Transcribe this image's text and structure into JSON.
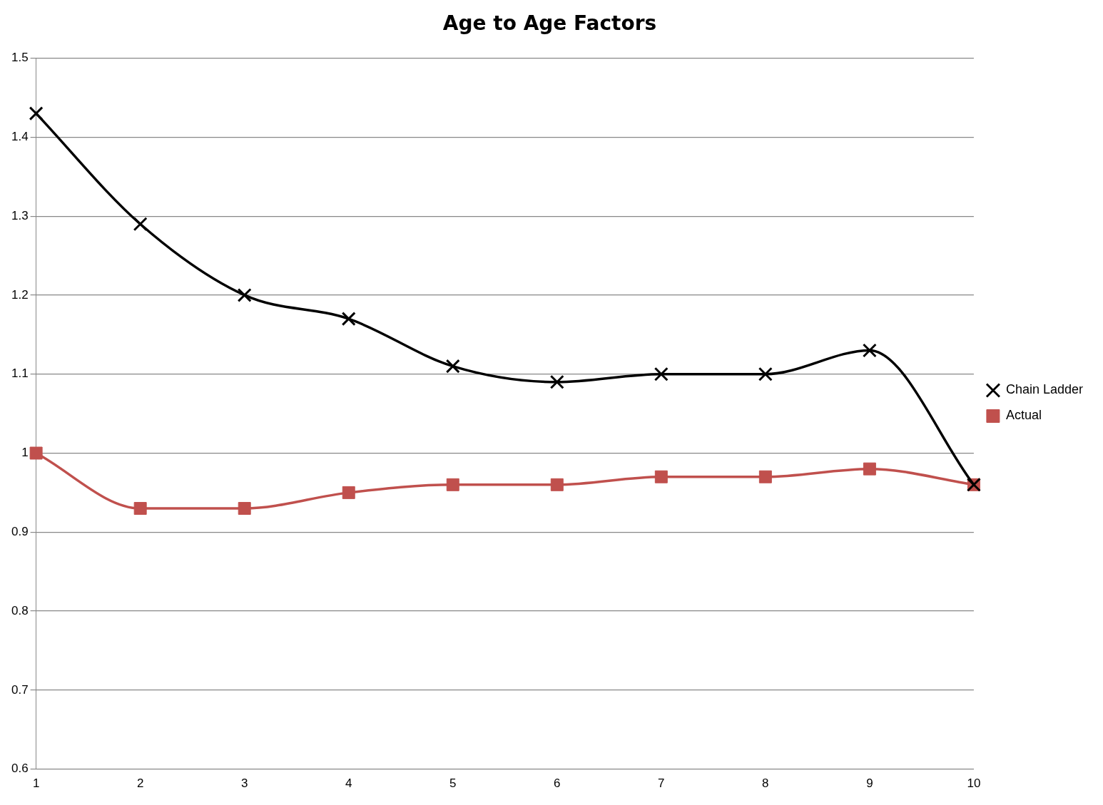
{
  "chart_data": {
    "type": "line",
    "title": "Age to Age Factors",
    "categories": [
      "1",
      "2",
      "3",
      "4",
      "5",
      "6",
      "7",
      "8",
      "9",
      "10"
    ],
    "series": [
      {
        "name": "Chain Ladder",
        "color": "#000000",
        "marker": "cross",
        "values": [
          1.43,
          1.29,
          1.2,
          1.17,
          1.11,
          1.09,
          1.1,
          1.1,
          1.13,
          0.96
        ]
      },
      {
        "name": "Actual",
        "color": "#c0504d",
        "marker": "square",
        "values": [
          1.0,
          0.93,
          0.93,
          0.95,
          0.96,
          0.96,
          0.97,
          0.97,
          0.98,
          0.96
        ]
      }
    ],
    "ylim": [
      0.6,
      1.5
    ],
    "yticks": [
      0.6,
      0.7,
      0.8,
      0.9,
      1,
      1.1,
      1.2,
      1.3,
      1.4,
      1.5
    ],
    "grid": "y",
    "legend": "right",
    "line_style": "solid"
  }
}
